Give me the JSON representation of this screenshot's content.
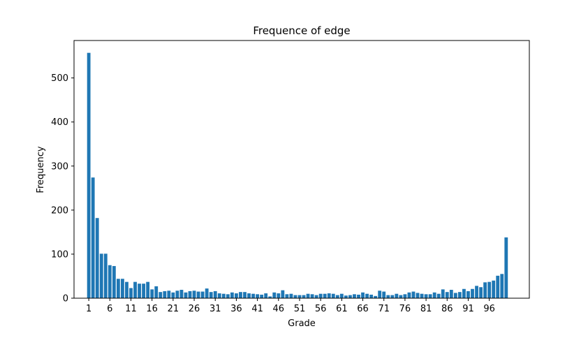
{
  "chart_data": {
    "type": "bar",
    "title": "Frequence of edge",
    "xlabel": "Grade",
    "ylabel": "Frequency",
    "bar_color": "#1f77b4",
    "xlim": [
      -2.5,
      105.5
    ],
    "ylim": [
      0,
      585
    ],
    "xticks": [
      1,
      6,
      11,
      16,
      21,
      26,
      31,
      36,
      41,
      46,
      51,
      56,
      61,
      66,
      71,
      76,
      81,
      86,
      91,
      96
    ],
    "yticks": [
      0,
      100,
      200,
      300,
      400,
      500
    ],
    "grid": false,
    "x": [
      1,
      2,
      3,
      4,
      5,
      6,
      7,
      8,
      9,
      10,
      11,
      12,
      13,
      14,
      15,
      16,
      17,
      18,
      19,
      20,
      21,
      22,
      23,
      24,
      25,
      26,
      27,
      28,
      29,
      30,
      31,
      32,
      33,
      34,
      35,
      36,
      37,
      38,
      39,
      40,
      41,
      42,
      43,
      44,
      45,
      46,
      47,
      48,
      49,
      50,
      51,
      52,
      53,
      54,
      55,
      56,
      57,
      58,
      59,
      60,
      61,
      62,
      63,
      64,
      65,
      66,
      67,
      68,
      69,
      70,
      71,
      72,
      73,
      74,
      75,
      76,
      77,
      78,
      79,
      80,
      81,
      82,
      83,
      84,
      85,
      86,
      87,
      88,
      89,
      90,
      91,
      92,
      93,
      94,
      95,
      96,
      97,
      98,
      99,
      100
    ],
    "values": [
      557,
      274,
      182,
      101,
      101,
      75,
      73,
      44,
      44,
      37,
      23,
      37,
      33,
      33,
      37,
      20,
      27,
      14,
      16,
      17,
      13,
      17,
      19,
      13,
      16,
      17,
      15,
      15,
      22,
      14,
      16,
      11,
      10,
      9,
      13,
      11,
      14,
      14,
      11,
      10,
      9,
      8,
      11,
      4,
      13,
      11,
      18,
      9,
      10,
      7,
      7,
      7,
      10,
      9,
      7,
      10,
      10,
      11,
      10,
      7,
      10,
      6,
      7,
      9,
      8,
      13,
      10,
      8,
      5,
      17,
      15,
      7,
      7,
      10,
      7,
      9,
      13,
      15,
      12,
      10,
      9,
      9,
      13,
      10,
      20,
      14,
      19,
      12,
      14,
      21,
      16,
      21,
      28,
      25,
      36,
      37,
      40,
      51,
      55,
      138
    ]
  }
}
